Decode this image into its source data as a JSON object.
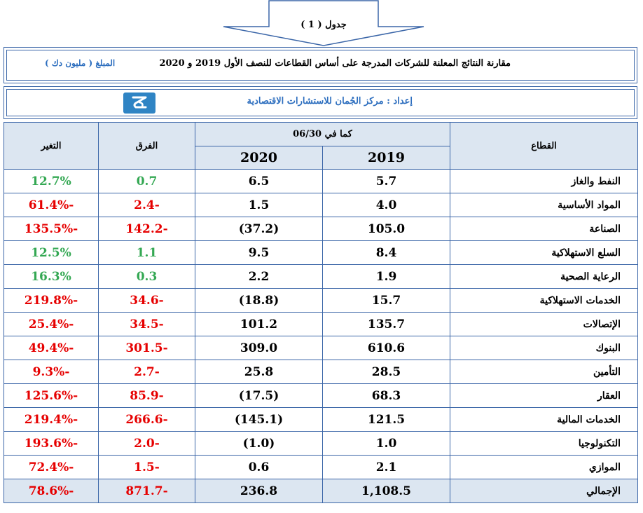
{
  "colors": {
    "border": "#3b66a8",
    "header_fill": "#dce6f1",
    "accent_blue": "#2e6fbf",
    "positive": "#34a853",
    "negative": "#e60000"
  },
  "caption": "جدول ( 1 )",
  "title": "مقارنة النتائج المعلنة للشركات المدرجة على أساس القطاعات للنصف الأول 2019 و 2020",
  "amount_unit": "المبلغ ( مليون دك )",
  "prepared_by": "إعداد : مركز الجُمان للاستشارات الاقتصادية",
  "logo_icon": "jumana-logo-icon",
  "table": {
    "headers": {
      "sector": "القطاع",
      "as_of": "كما في 06/30",
      "year1": "2019",
      "year2": "2020",
      "diff": "الفرق",
      "change": "التغير"
    },
    "rows": [
      {
        "sector": "النفط والغاز",
        "y2019": "5.7",
        "y2020": "6.5",
        "diff": "0.7",
        "change": "12.7%",
        "sign": "pos"
      },
      {
        "sector": "المواد الأساسية",
        "y2019": "4.0",
        "y2020": "1.5",
        "diff": "-2.4",
        "change": "-61.4%",
        "sign": "neg"
      },
      {
        "sector": "الصناعة",
        "y2019": "105.0",
        "y2020": "(37.2)",
        "diff": "-142.2",
        "change": "-135.5%",
        "sign": "neg"
      },
      {
        "sector": "السلع الاستهلاكية",
        "y2019": "8.4",
        "y2020": "9.5",
        "diff": "1.1",
        "change": "12.5%",
        "sign": "pos"
      },
      {
        "sector": "الرعاية الصحية",
        "y2019": "1.9",
        "y2020": "2.2",
        "diff": "0.3",
        "change": "16.3%",
        "sign": "pos"
      },
      {
        "sector": "الخدمات الاستهلاكية",
        "y2019": "15.7",
        "y2020": "(18.8)",
        "diff": "-34.6",
        "change": "-219.8%",
        "sign": "neg"
      },
      {
        "sector": "الإتصالات",
        "y2019": "135.7",
        "y2020": "101.2",
        "diff": "-34.5",
        "change": "-25.4%",
        "sign": "neg"
      },
      {
        "sector": "البنوك",
        "y2019": "610.6",
        "y2020": "309.0",
        "diff": "-301.5",
        "change": "-49.4%",
        "sign": "neg"
      },
      {
        "sector": "التأمين",
        "y2019": "28.5",
        "y2020": "25.8",
        "diff": "-2.7",
        "change": "-9.3%",
        "sign": "neg"
      },
      {
        "sector": "العقار",
        "y2019": "68.3",
        "y2020": "(17.5)",
        "diff": "-85.9",
        "change": "-125.6%",
        "sign": "neg"
      },
      {
        "sector": "الخدمات المالية",
        "y2019": "121.5",
        "y2020": "(145.1)",
        "diff": "-266.6",
        "change": "-219.4%",
        "sign": "neg"
      },
      {
        "sector": "التكنولوجيا",
        "y2019": "1.0",
        "y2020": "(1.0)",
        "diff": "-2.0",
        "change": "-193.6%",
        "sign": "neg"
      },
      {
        "sector": "الموازي",
        "y2019": "2.1",
        "y2020": "0.6",
        "diff": "-1.5",
        "change": "-72.4%",
        "sign": "neg"
      }
    ],
    "total": {
      "sector": "الإجمالي",
      "y2019": "1,108.5",
      "y2020": "236.8",
      "diff": "-871.7",
      "change": "-78.6%",
      "sign": "neg"
    }
  }
}
